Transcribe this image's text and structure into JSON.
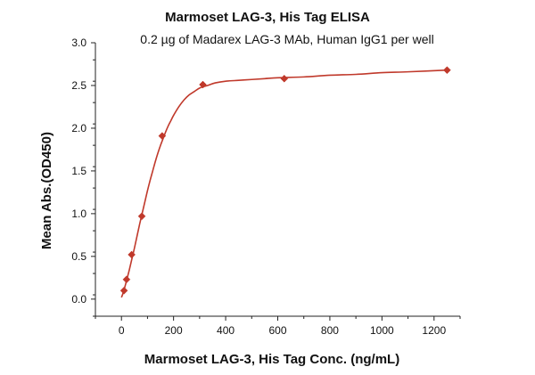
{
  "chart_data": {
    "type": "scatter",
    "title": "Marmoset LAG-3, His Tag ELISA",
    "subtitle": "0.2 µg of Madarex LAG-3 MAb, Human IgG1 per well",
    "xlabel": "Marmoset LAG-3, His Tag Conc. (ng/mL)",
    "ylabel": "Mean Abs.(OD450)",
    "xlim": [
      -100,
      1300
    ],
    "ylim": [
      -0.2,
      3.0
    ],
    "xticks": [
      0,
      200,
      400,
      600,
      800,
      1000,
      1200
    ],
    "yticks": [
      0.0,
      0.5,
      1.0,
      1.5,
      2.0,
      2.5,
      3.0
    ],
    "xtick_labels": [
      "0",
      "200",
      "400",
      "600",
      "800",
      "1000",
      "1200"
    ],
    "ytick_labels": [
      "0.0",
      "0.5",
      "1.0",
      "1.5",
      "2.0",
      "2.5",
      "3.0"
    ],
    "grid": false,
    "legend": "none",
    "series": [
      {
        "marker": "diamond",
        "color": "#c0392b",
        "x": [
          9.77,
          19.53,
          39.06,
          78.13,
          156.25,
          312.5,
          625,
          1250
        ],
        "y": [
          0.1,
          0.23,
          0.52,
          0.97,
          1.91,
          2.51,
          2.58,
          2.68
        ]
      }
    ],
    "fit_curve": {
      "type": "4PL",
      "color": "#c0392b",
      "x": [
        0,
        5,
        10,
        20,
        30,
        40,
        50,
        60,
        70,
        80,
        90,
        100,
        110,
        120,
        130,
        140,
        150,
        160,
        170,
        180,
        190,
        200,
        220,
        240,
        260,
        280,
        300,
        330,
        360,
        400,
        450,
        500,
        550,
        600,
        700,
        800,
        900,
        1000,
        1100,
        1250
      ],
      "y": [
        0.02,
        0.06,
        0.11,
        0.22,
        0.34,
        0.47,
        0.6,
        0.74,
        0.88,
        1.01,
        1.14,
        1.27,
        1.39,
        1.5,
        1.61,
        1.71,
        1.8,
        1.88,
        1.96,
        2.03,
        2.09,
        2.15,
        2.25,
        2.33,
        2.39,
        2.43,
        2.47,
        2.5,
        2.53,
        2.55,
        2.56,
        2.57,
        2.58,
        2.59,
        2.6,
        2.62,
        2.63,
        2.65,
        2.66,
        2.68
      ]
    }
  }
}
